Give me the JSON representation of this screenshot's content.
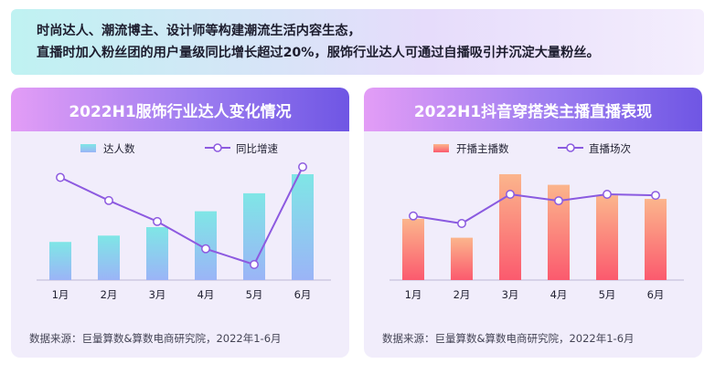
{
  "intro": {
    "line1": "时尚达人、潮流博主、设计师等构建潮流生活内容生态，",
    "line2": "直播时加入粉丝团的用户量级同比增长超过20%，服饰行业达人可通过自播吸引并沉淀大量粉丝。"
  },
  "colors": {
    "bar_left": [
      "#7fe6e6",
      "#9bb4f7"
    ],
    "line_left": "#8d5ae0",
    "bar_right": [
      "#fbb58c",
      "#fb5a6e"
    ],
    "line_right": "#8a5ae0",
    "header": [
      "#e39df6",
      "#6f56e4"
    ]
  },
  "chart_data": [
    {
      "type": "bar",
      "title": "2022H1服饰行业达人变化情况",
      "categories": [
        "1月",
        "2月",
        "3月",
        "4月",
        "5月",
        "6月"
      ],
      "series": [
        {
          "name": "达人数",
          "kind": "bar",
          "values": [
            36,
            42,
            50,
            65,
            82,
            100
          ]
        },
        {
          "name": "同比增速",
          "kind": "line",
          "values": [
            80,
            58,
            38,
            12,
            -3,
            90
          ]
        }
      ],
      "legend_position": "top-center",
      "axes_visible": false,
      "source": "数据来源：巨量算数&算数电商研究院，2022年1-6月"
    },
    {
      "type": "bar",
      "title": "2022H1抖音穿搭类主播直播表现",
      "categories": [
        "1月",
        "2月",
        "3月",
        "4月",
        "5月",
        "6月"
      ],
      "series": [
        {
          "name": "开播主播数",
          "kind": "bar",
          "values": [
            52,
            36,
            90,
            81,
            72,
            69
          ]
        },
        {
          "name": "直播场次",
          "kind": "line",
          "values": [
            62,
            55,
            82,
            76,
            82,
            81
          ]
        }
      ],
      "legend_position": "top-center",
      "axes_visible": false,
      "source": "数据来源：巨量算数&算数电商研究院，2022年1-6月"
    }
  ]
}
